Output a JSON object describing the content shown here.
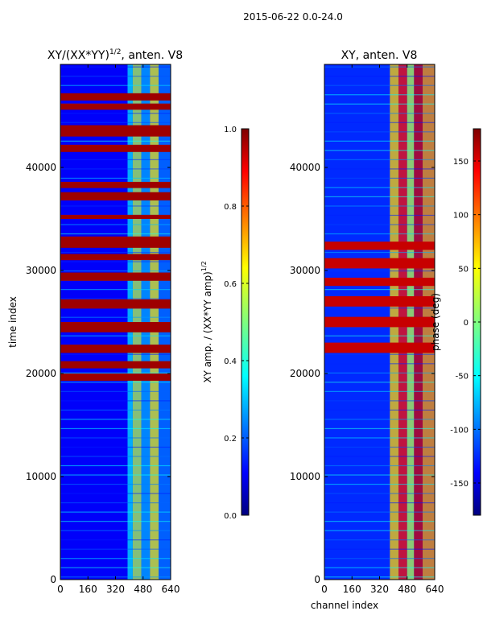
{
  "suptitle": "2015-06-22 0.0-24.0",
  "colors": {
    "jet": [
      "#00007f",
      "#0000ff",
      "#007fff",
      "#00ffff",
      "#7fff7f",
      "#ffff00",
      "#ff7f00",
      "#ff0000",
      "#7f0000"
    ]
  },
  "chart_data": [
    {
      "type": "heatmap",
      "title": "XY/(XX*YY)^1/2, anten. V8",
      "title_main": "XY/(XX*YY)",
      "title_sup": "1/2",
      "title_tail": ", anten. V8",
      "xlabel": "",
      "ylabel": "time index",
      "xlim": [
        0,
        640
      ],
      "ylim": [
        0,
        50000
      ],
      "xticks": [
        "0",
        "160",
        "320",
        "480",
        "640"
      ],
      "yticks": [
        "0",
        "10000",
        "20000",
        "30000",
        "40000"
      ],
      "colorbar": {
        "label_main": "XY amp. / (XX*YY amp)",
        "label_sup": "1/2",
        "range": [
          0.0,
          1.0
        ],
        "ticks": [
          "0.0",
          "0.2",
          "0.4",
          "0.6",
          "0.8",
          "1.0"
        ]
      },
      "description_bands": {
        "background_value": 0.12,
        "channel_band_values": [
          {
            "x0": 0,
            "x1": 390,
            "value": 0.12
          },
          {
            "x0": 390,
            "x1": 420,
            "value": 0.35
          },
          {
            "x0": 420,
            "x1": 470,
            "value": 0.55
          },
          {
            "x0": 470,
            "x1": 520,
            "value": 0.3
          },
          {
            "x0": 520,
            "x1": 570,
            "value": 0.6
          },
          {
            "x0": 570,
            "x1": 640,
            "value": 0.25
          }
        ],
        "saturated_time_ranges": [
          [
            19300,
            20000
          ],
          [
            20500,
            21200
          ],
          [
            22000,
            22800
          ],
          [
            24000,
            25000
          ],
          [
            26300,
            27200
          ],
          [
            29000,
            29800
          ],
          [
            31000,
            31600
          ],
          [
            32200,
            33300
          ],
          [
            35000,
            35400
          ],
          [
            36800,
            37600
          ],
          [
            38000,
            38600
          ],
          [
            41500,
            42200
          ],
          [
            43000,
            44100
          ],
          [
            45600,
            46200
          ],
          [
            46500,
            47200
          ]
        ]
      }
    },
    {
      "type": "heatmap",
      "title": "XY, anten. V8",
      "xlabel": "channel index",
      "ylabel": "",
      "xlim": [
        0,
        640
      ],
      "ylim": [
        0,
        50000
      ],
      "xticks": [
        "0",
        "160",
        "320",
        "480",
        "640"
      ],
      "yticks": [
        "0",
        "10000",
        "20000",
        "30000",
        "40000"
      ],
      "colorbar": {
        "label": "phase (deg)",
        "range": [
          -180,
          180
        ],
        "ticks": [
          "-150",
          "-100",
          "-50",
          "0",
          "50",
          "100",
          "150"
        ],
        "tick_values": [
          -150,
          -100,
          -50,
          0,
          50,
          100,
          150
        ]
      },
      "description_bands": {
        "background_value": -120,
        "channel_band_values": [
          {
            "x0": 0,
            "x1": 380,
            "value": -120
          },
          {
            "x0": 380,
            "x1": 430,
            "value": 60
          },
          {
            "x0": 430,
            "x1": 480,
            "value": 130
          },
          {
            "x0": 480,
            "x1": 520,
            "value": 20
          },
          {
            "x0": 520,
            "x1": 570,
            "value": 150
          },
          {
            "x0": 570,
            "x1": 640,
            "value": 80
          }
        ],
        "saturated_time_ranges": [
          [
            22000,
            23000
          ],
          [
            24500,
            25500
          ],
          [
            26500,
            27500
          ],
          [
            28500,
            29300
          ],
          [
            30200,
            31200
          ],
          [
            32000,
            32800
          ]
        ]
      }
    }
  ]
}
